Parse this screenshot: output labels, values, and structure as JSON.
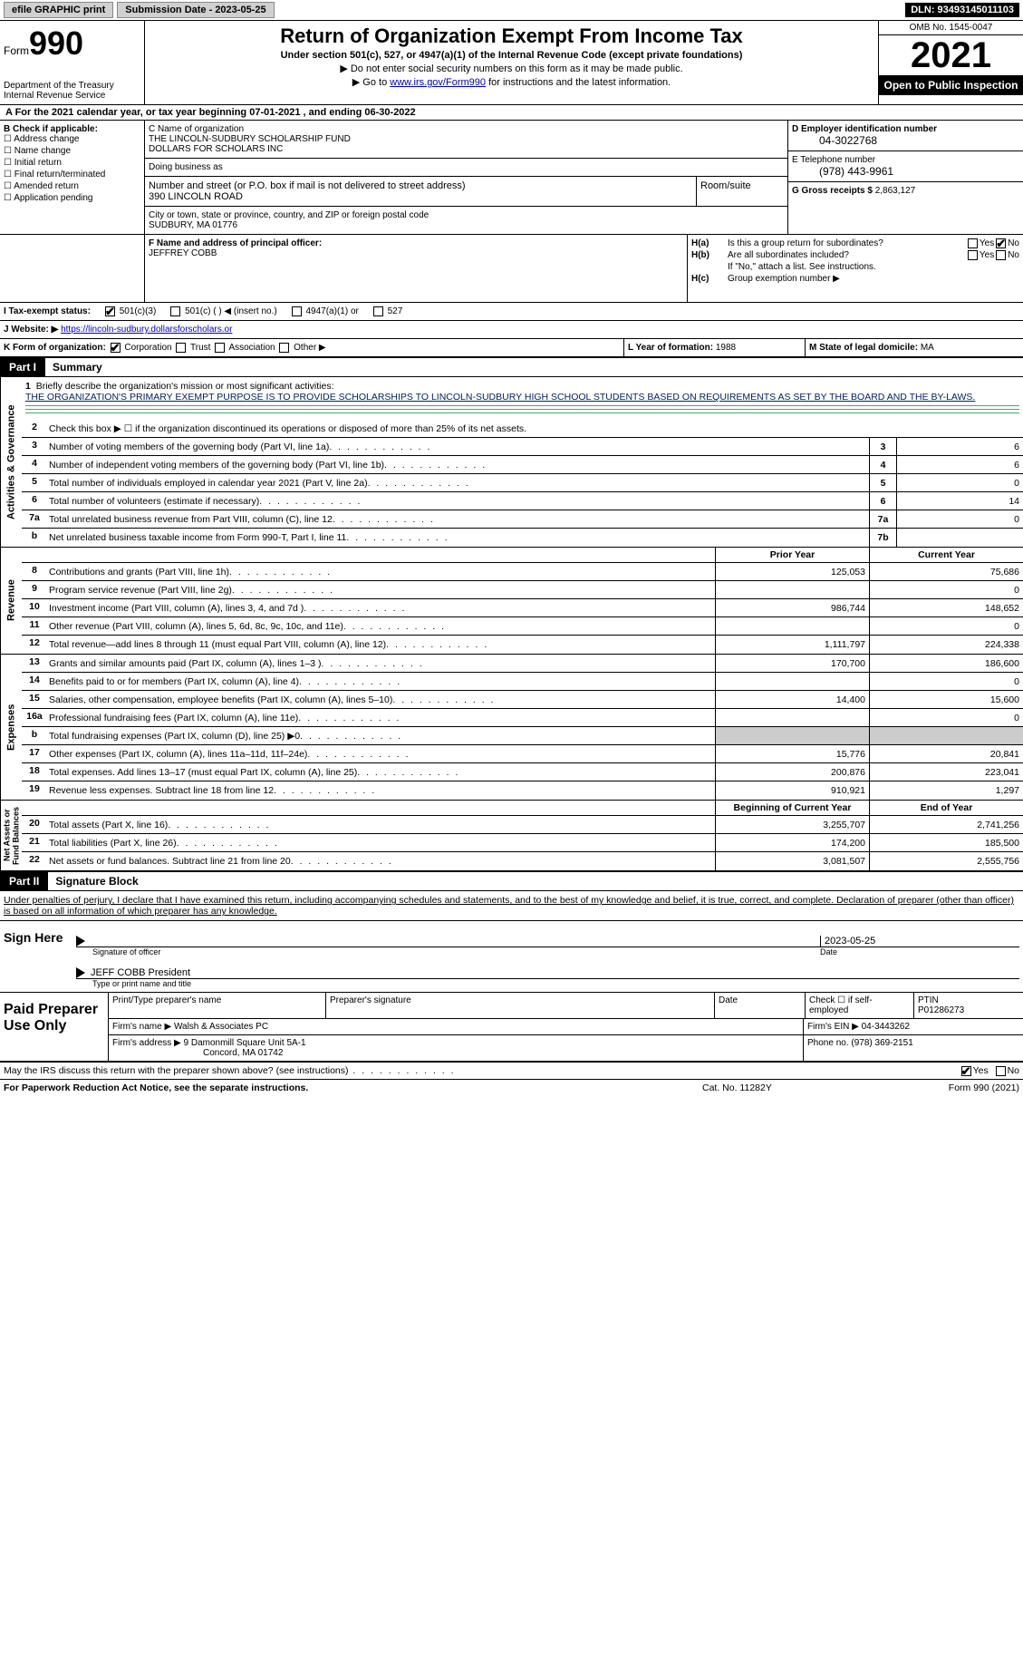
{
  "topbar": {
    "efile": "efile GRAPHIC print",
    "submission": "Submission Date - 2023-05-25",
    "dln": "DLN: 93493145011103"
  },
  "header": {
    "form_word": "Form",
    "form_num": "990",
    "dept": "Department of the Treasury\nInternal Revenue Service",
    "title": "Return of Organization Exempt From Income Tax",
    "sub": "Under section 501(c), 527, or 4947(a)(1) of the Internal Revenue Code (except private foundations)",
    "note1": "▶ Do not enter social security numbers on this form as it may be made public.",
    "note2_pre": "▶ Go to ",
    "note2_link": "www.irs.gov/Form990",
    "note2_post": " for instructions and the latest information.",
    "omb": "OMB No. 1545-0047",
    "year": "2021",
    "opi": "Open to Public Inspection"
  },
  "line_a": {
    "pre": "A For the 2021 calendar year, or tax year beginning ",
    "begin": "07-01-2021",
    "mid": " , and ending ",
    "end": "06-30-2022"
  },
  "b": {
    "label": "B Check if applicable:",
    "opts": [
      "Address change",
      "Name change",
      "Initial return",
      "Final return/terminated",
      "Amended return",
      "Application pending"
    ]
  },
  "c": {
    "name_lbl": "C Name of organization",
    "name1": "THE LINCOLN-SUDBURY SCHOLARSHIP FUND",
    "name2": "DOLLARS FOR SCHOLARS INC",
    "dba_lbl": "Doing business as",
    "addr_lbl": "Number and street (or P.O. box if mail is not delivered to street address)",
    "room_lbl": "Room/suite",
    "addr": "390 LINCOLN ROAD",
    "city_lbl": "City or town, state or province, country, and ZIP or foreign postal code",
    "city": "SUDBURY, MA  01776"
  },
  "d": {
    "ein_lbl": "D Employer identification number",
    "ein": "04-3022768",
    "phone_lbl": "E Telephone number",
    "phone": "(978) 443-9961",
    "gross_lbl": "G Gross receipts $",
    "gross": "2,863,127"
  },
  "f": {
    "label": "F  Name and address of principal officer:",
    "name": "JEFFREY COBB"
  },
  "h": {
    "ha_lbl": "H(a)",
    "ha_txt": "Is this a group return for subordinates?",
    "hb_lbl": "H(b)",
    "hb_txt": "Are all subordinates included?",
    "hb_note": "If \"No,\" attach a list. See instructions.",
    "hc_lbl": "H(c)",
    "hc_txt": "Group exemption number ▶",
    "yes": "Yes",
    "no": "No"
  },
  "i": {
    "label": "I   Tax-exempt status:",
    "o1": "501(c)(3)",
    "o2": "501(c) (  ) ◀ (insert no.)",
    "o3": "4947(a)(1) or",
    "o4": "527"
  },
  "j": {
    "label": "J  Website: ▶",
    "url": "https://lincoln-sudbury.dollarsforscholars.or"
  },
  "k": {
    "label": "K Form of organization:",
    "opts": [
      "Corporation",
      "Trust",
      "Association",
      "Other ▶"
    ],
    "l_lbl": "L Year of formation:",
    "l_val": "1988",
    "m_lbl": "M State of legal domicile:",
    "m_val": "MA"
  },
  "parts": {
    "p1": "Part I",
    "p1_title": "Summary",
    "p2": "Part II",
    "p2_title": "Signature Block"
  },
  "tabs": {
    "ag": "Activities & Governance",
    "rev": "Revenue",
    "exp": "Expenses",
    "na": "Net Assets or\nFund Balances"
  },
  "summary": {
    "q1": "Briefly describe the organization's mission or most significant activities:",
    "mission": "THE ORGANIZATION'S PRIMARY EXEMPT PURPOSE IS TO PROVIDE SCHOLARSHIPS TO LINCOLN-SUDBURY HIGH SCHOOL STUDENTS BASED ON REQUIREMENTS AS SET BY THE BOARD AND THE BY-LAWS.",
    "q2": "Check this box ▶ ☐ if the organization discontinued its operations or disposed of more than 25% of its net assets.",
    "col_prior": "Prior Year",
    "col_curr": "Current Year",
    "col_begin": "Beginning of Current Year",
    "col_end": "End of Year",
    "rows_ag": [
      {
        "n": "3",
        "lbl": "Number of voting members of the governing body (Part VI, line 1a)",
        "box": "3",
        "v": "6"
      },
      {
        "n": "4",
        "lbl": "Number of independent voting members of the governing body (Part VI, line 1b)",
        "box": "4",
        "v": "6"
      },
      {
        "n": "5",
        "lbl": "Total number of individuals employed in calendar year 2021 (Part V, line 2a)",
        "box": "5",
        "v": "0"
      },
      {
        "n": "6",
        "lbl": "Total number of volunteers (estimate if necessary)",
        "box": "6",
        "v": "14"
      },
      {
        "n": "7a",
        "lbl": "Total unrelated business revenue from Part VIII, column (C), line 12",
        "box": "7a",
        "v": "0"
      },
      {
        "n": "b",
        "lbl": "Net unrelated business taxable income from Form 990-T, Part I, line 11",
        "box": "7b",
        "v": ""
      }
    ],
    "rows_rev": [
      {
        "n": "8",
        "lbl": "Contributions and grants (Part VIII, line 1h)",
        "py": "125,053",
        "cy": "75,686"
      },
      {
        "n": "9",
        "lbl": "Program service revenue (Part VIII, line 2g)",
        "py": "",
        "cy": "0"
      },
      {
        "n": "10",
        "lbl": "Investment income (Part VIII, column (A), lines 3, 4, and 7d )",
        "py": "986,744",
        "cy": "148,652"
      },
      {
        "n": "11",
        "lbl": "Other revenue (Part VIII, column (A), lines 5, 6d, 8c, 9c, 10c, and 11e)",
        "py": "",
        "cy": "0"
      },
      {
        "n": "12",
        "lbl": "Total revenue—add lines 8 through 11 (must equal Part VIII, column (A), line 12)",
        "py": "1,111,797",
        "cy": "224,338"
      }
    ],
    "rows_exp": [
      {
        "n": "13",
        "lbl": "Grants and similar amounts paid (Part IX, column (A), lines 1–3 )",
        "py": "170,700",
        "cy": "186,600"
      },
      {
        "n": "14",
        "lbl": "Benefits paid to or for members (Part IX, column (A), line 4)",
        "py": "",
        "cy": "0"
      },
      {
        "n": "15",
        "lbl": "Salaries, other compensation, employee benefits (Part IX, column (A), lines 5–10)",
        "py": "14,400",
        "cy": "15,600"
      },
      {
        "n": "16a",
        "lbl": "Professional fundraising fees (Part IX, column (A), line 11e)",
        "py": "",
        "cy": "0"
      },
      {
        "n": "b",
        "lbl": "Total fundraising expenses (Part IX, column (D), line 25) ▶0",
        "py": "SHADE",
        "cy": "SHADE"
      },
      {
        "n": "17",
        "lbl": "Other expenses (Part IX, column (A), lines 11a–11d, 11f–24e)",
        "py": "15,776",
        "cy": "20,841"
      },
      {
        "n": "18",
        "lbl": "Total expenses. Add lines 13–17 (must equal Part IX, column (A), line 25)",
        "py": "200,876",
        "cy": "223,041"
      },
      {
        "n": "19",
        "lbl": "Revenue less expenses. Subtract line 18 from line 12",
        "py": "910,921",
        "cy": "1,297"
      }
    ],
    "rows_na": [
      {
        "n": "20",
        "lbl": "Total assets (Part X, line 16)",
        "py": "3,255,707",
        "cy": "2,741,256"
      },
      {
        "n": "21",
        "lbl": "Total liabilities (Part X, line 26)",
        "py": "174,200",
        "cy": "185,500"
      },
      {
        "n": "22",
        "lbl": "Net assets or fund balances. Subtract line 21 from line 20",
        "py": "3,081,507",
        "cy": "2,555,756"
      }
    ]
  },
  "sig": {
    "perjury": "Under penalties of perjury, I declare that I have examined this return, including accompanying schedules and statements, and to the best of my knowledge and belief, it is true, correct, and complete. Declaration of preparer (other than officer) is based on all information of which preparer has any knowledge.",
    "sign_here": "Sign Here",
    "sig_officer": "Signature of officer",
    "date": "Date",
    "date_val": "2023-05-25",
    "name_title": "JEFF COBB  President",
    "type_name": "Type or print name and title"
  },
  "prep": {
    "label": "Paid Preparer Use Only",
    "h1": "Print/Type preparer's name",
    "h2": "Preparer's signature",
    "h3": "Date",
    "h4_pre": "Check ☐ if self-employed",
    "h5": "PTIN",
    "ptin": "P01286273",
    "firm_lbl": "Firm's name    ▶",
    "firm": "Walsh & Associates PC",
    "ein_lbl": "Firm's EIN ▶",
    "ein": "04-3443262",
    "addr_lbl": "Firm's address ▶",
    "addr1": "9 Damonmill Square Unit 5A-1",
    "addr2": "Concord, MA  01742",
    "phone_lbl": "Phone no.",
    "phone": "(978) 369-2151"
  },
  "discuss": {
    "txt": "May the IRS discuss this return with the preparer shown above? (see instructions)",
    "yes": "Yes",
    "no": "No"
  },
  "footer": {
    "f1": "For Paperwork Reduction Act Notice, see the separate instructions.",
    "f2": "Cat. No. 11282Y",
    "f3": "Form 990 (2021)"
  }
}
